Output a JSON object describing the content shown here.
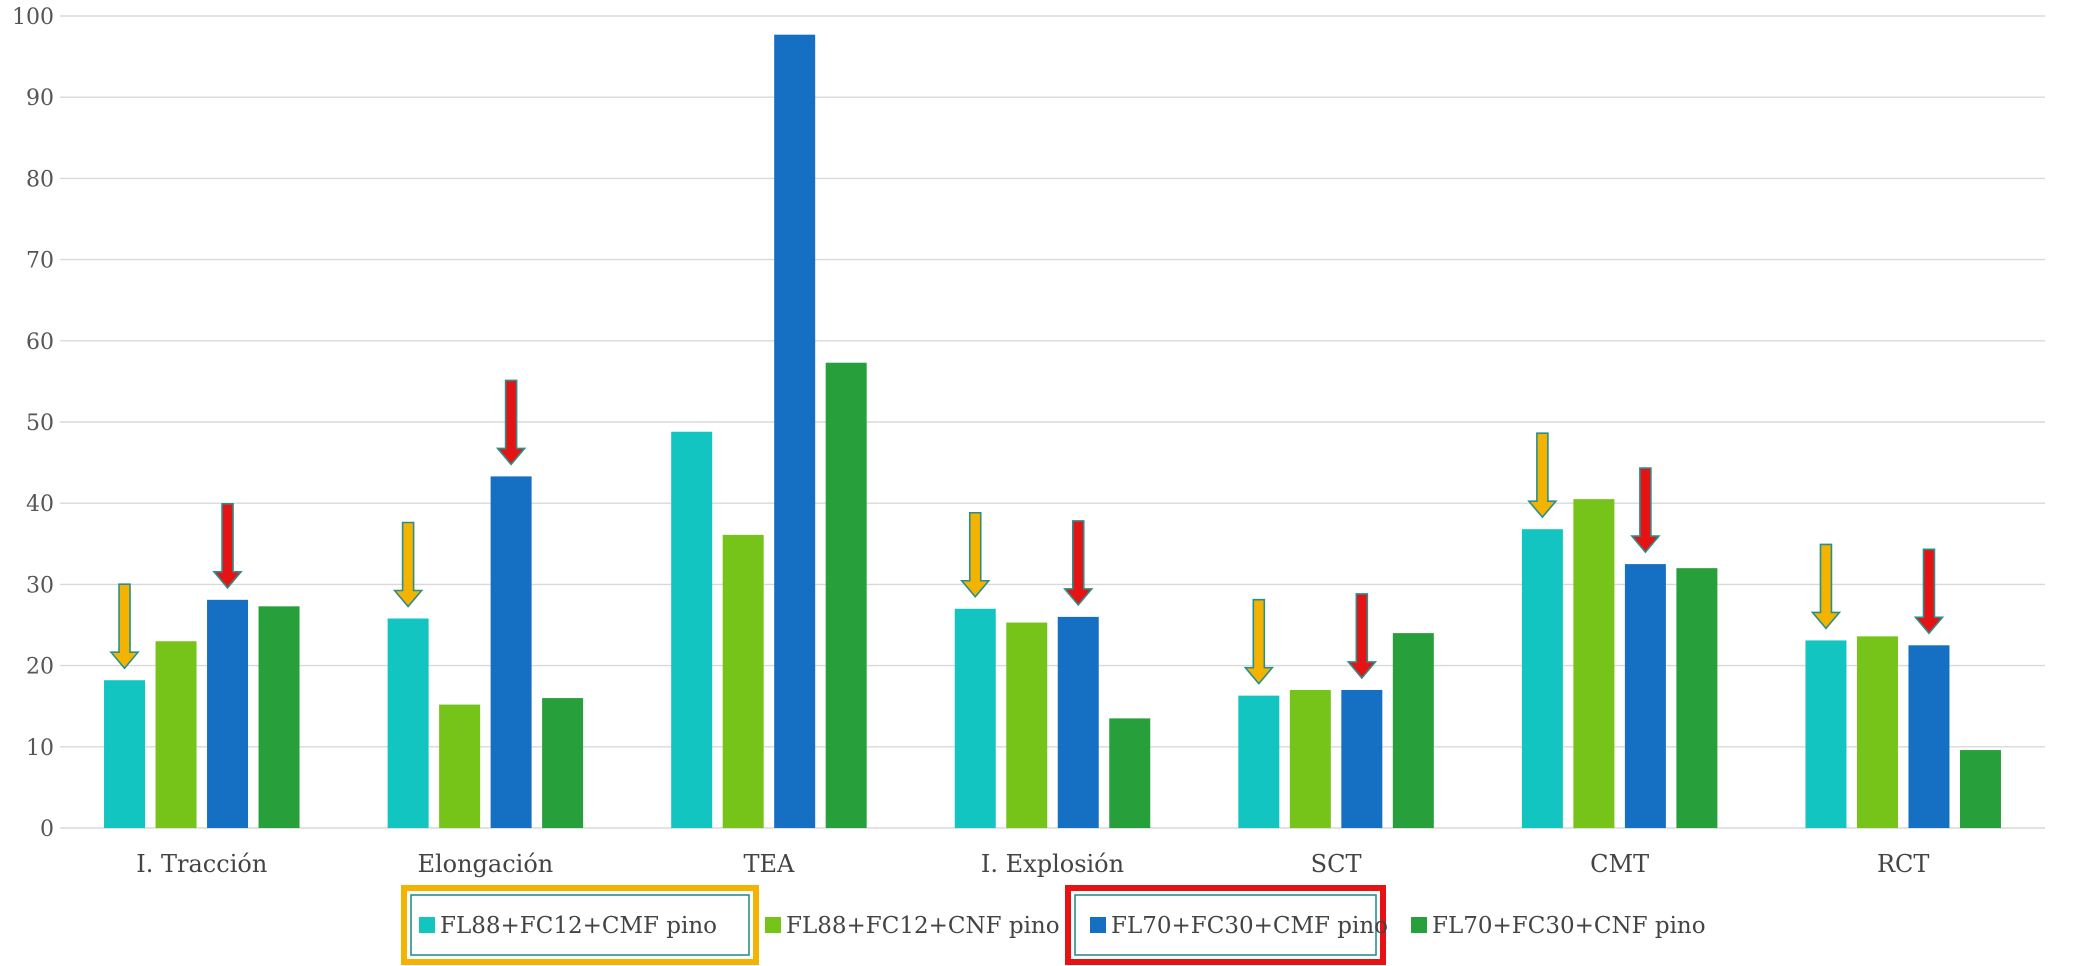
{
  "chart_data": {
    "type": "bar",
    "categories": [
      "I. Tracción",
      "Elongación",
      "TEA",
      "I. Explosión",
      "SCT",
      "CMT",
      "RCT"
    ],
    "series": [
      {
        "name": "FL88+FC12+CMF pino",
        "color": "#12c5c0",
        "values": [
          18.2,
          25.8,
          48.8,
          27.0,
          16.3,
          36.8,
          23.1
        ]
      },
      {
        "name": "FL88+FC12+CNF pino",
        "color": "#76c31a",
        "values": [
          23.0,
          15.2,
          36.1,
          25.3,
          17.0,
          40.5,
          23.6
        ]
      },
      {
        "name": "FL70+FC30+CMF pino",
        "color": "#1570c3",
        "values": [
          28.1,
          43.3,
          97.7,
          26.0,
          17.0,
          32.5,
          22.5
        ]
      },
      {
        "name": "FL70+FC30+CNF pino",
        "color": "#279f3a",
        "values": [
          27.3,
          16.0,
          57.3,
          13.5,
          24.0,
          32.0,
          9.6
        ]
      }
    ],
    "ylim": [
      0,
      100
    ],
    "yticks": [
      0,
      10,
      20,
      30,
      40,
      50,
      60,
      70,
      80,
      90,
      100
    ],
    "title": "",
    "xlabel": "",
    "ylabel": "",
    "grid": true,
    "legend": "bottom",
    "legend_highlight_colors": [
      "#f3b300",
      "#e51313"
    ],
    "arrows": [
      {
        "category": "I. Tracción",
        "series": "FL88+FC12+CMF pino",
        "color": "#f3b300"
      },
      {
        "category": "I. Tracción",
        "series": "FL70+FC30+CMF pino",
        "color": "#e51313"
      },
      {
        "category": "Elongación",
        "series": "FL88+FC12+CMF pino",
        "color": "#f3b300"
      },
      {
        "category": "Elongación",
        "series": "FL70+FC30+CMF pino",
        "color": "#e51313"
      },
      {
        "category": "I. Explosión",
        "series": "FL88+FC12+CMF pino",
        "color": "#f3b300"
      },
      {
        "category": "I. Explosión",
        "series": "FL70+FC30+CMF pino",
        "color": "#e51313"
      },
      {
        "category": "SCT",
        "series": "FL88+FC12+CMF pino",
        "color": "#f3b300"
      },
      {
        "category": "SCT",
        "series": "FL70+FC30+CMF pino",
        "color": "#e51313"
      },
      {
        "category": "CMT",
        "series": "FL88+FC12+CMF pino",
        "color": "#f3b300"
      },
      {
        "category": "CMT",
        "series": "FL70+FC30+CMF pino",
        "color": "#e51313"
      },
      {
        "category": "RCT",
        "series": "FL88+FC12+CMF pino",
        "color": "#f3b300"
      },
      {
        "category": "RCT",
        "series": "FL70+FC30+CMF pino",
        "color": "#e51313"
      }
    ]
  }
}
